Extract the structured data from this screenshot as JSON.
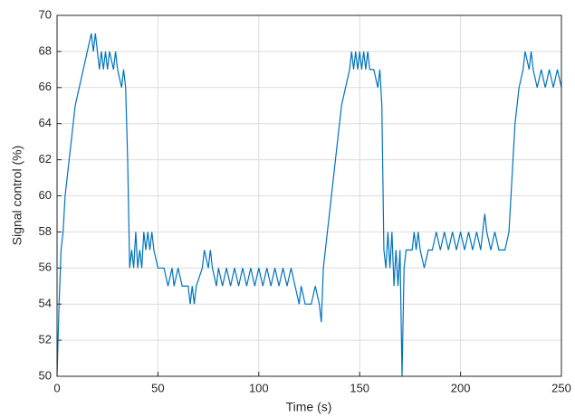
{
  "chart_data": {
    "type": "line",
    "x_label": "Time (s)",
    "y_label": "Signal control (%)",
    "color": "#0072bd",
    "grid": true,
    "xlim": [
      0,
      250
    ],
    "xticks": [
      0,
      50,
      100,
      150,
      200,
      250
    ],
    "ylim": [
      50,
      70
    ],
    "yticks": [
      50,
      52,
      54,
      56,
      58,
      60,
      62,
      64,
      66,
      68,
      70
    ],
    "x": [
      0,
      1,
      2,
      3,
      4,
      5,
      6,
      7,
      8,
      9,
      11,
      13,
      15,
      17,
      18,
      19,
      20,
      21,
      22,
      23,
      24,
      25,
      26,
      28,
      29,
      30,
      32,
      33,
      34,
      35,
      36,
      37,
      38,
      39,
      40,
      41,
      42,
      43,
      44,
      45,
      46,
      47,
      48,
      50,
      53,
      55,
      57,
      58,
      60,
      62,
      65,
      66,
      67,
      68,
      69,
      72,
      73,
      75,
      76,
      77,
      79,
      80,
      82,
      84,
      86,
      88,
      90,
      92,
      94,
      96,
      98,
      100,
      102,
      104,
      106,
      108,
      110,
      112,
      114,
      116,
      118,
      120,
      121,
      123,
      126,
      128,
      130,
      131,
      132,
      133,
      134,
      135,
      136,
      137,
      138,
      139,
      140,
      141,
      143,
      145,
      146,
      147,
      148,
      149,
      150,
      151,
      152,
      153,
      154,
      155,
      157,
      159,
      160,
      161,
      162,
      163,
      164,
      165,
      166,
      167,
      168,
      169,
      170,
      171,
      172,
      173,
      176,
      177,
      178,
      179,
      180,
      182,
      184,
      186,
      188,
      190,
      192,
      194,
      196,
      198,
      200,
      202,
      204,
      206,
      208,
      210,
      212,
      213,
      215,
      217,
      219,
      222,
      224,
      225,
      226,
      227,
      228,
      229,
      231,
      232,
      234,
      235,
      236,
      238,
      240,
      242,
      244,
      246,
      248,
      250
    ],
    "values": [
      50,
      54,
      57,
      58,
      60,
      61,
      62,
      63,
      64,
      65,
      66,
      67,
      68,
      69,
      68,
      69,
      68,
      67,
      68,
      67,
      68,
      67,
      68,
      67,
      68,
      67,
      66,
      67,
      66,
      62,
      56,
      57,
      56,
      58,
      56,
      57,
      56,
      58,
      57,
      58,
      57,
      58,
      57,
      56,
      56,
      55,
      56,
      55,
      56,
      55,
      55,
      54,
      55,
      54,
      55,
      56,
      57,
      56,
      57,
      56,
      55,
      56,
      55,
      56,
      55,
      56,
      55,
      56,
      55,
      56,
      55,
      56,
      55,
      56,
      55,
      56,
      55,
      56,
      55,
      56,
      55,
      54,
      55,
      54,
      54,
      55,
      54,
      53,
      56,
      57,
      58,
      59,
      60,
      61,
      62,
      63,
      64,
      65,
      66,
      67,
      68,
      67,
      68,
      67,
      68,
      67,
      68,
      67,
      68,
      67,
      67,
      66,
      67,
      65,
      57,
      56,
      58,
      56,
      58,
      55,
      57,
      55,
      57,
      50,
      56,
      57,
      57,
      58,
      57,
      58,
      57,
      56,
      57,
      57,
      58,
      57,
      58,
      57,
      58,
      57,
      58,
      57,
      58,
      57,
      58,
      57,
      59,
      58,
      57,
      58,
      57,
      57,
      58,
      60,
      62,
      64,
      65,
      66,
      67,
      68,
      67,
      68,
      67,
      66,
      67,
      66,
      67,
      66,
      67,
      66
    ]
  }
}
